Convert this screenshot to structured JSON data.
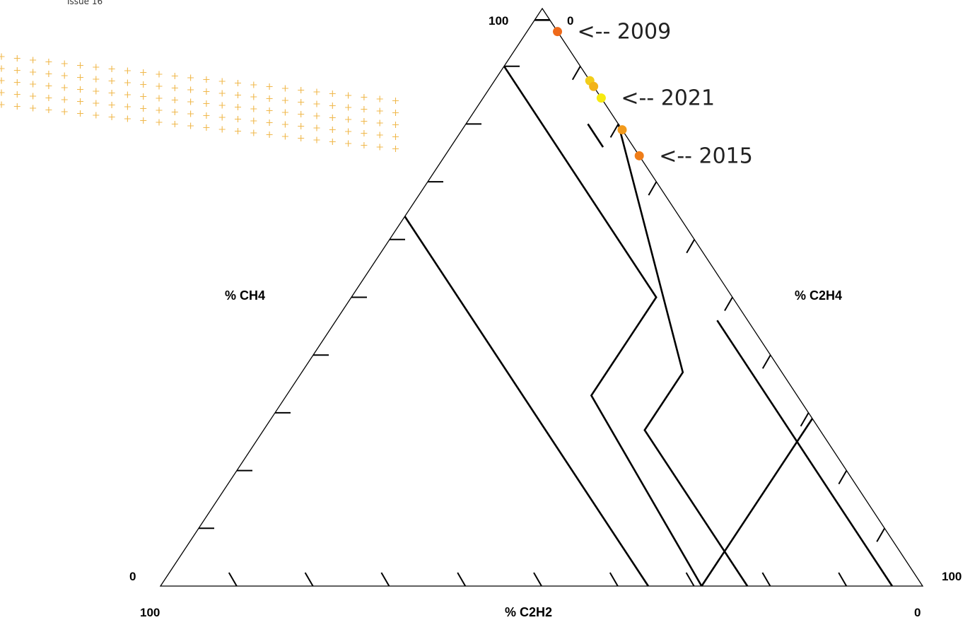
{
  "header": {
    "issue": "Issue 16"
  },
  "decoration": {
    "cross_color": "#f0b84c"
  },
  "chart_data": {
    "type": "scatter",
    "subtype": "ternary (Duval triangle)",
    "axes": {
      "ch4": {
        "label": "% CH4",
        "min": 0,
        "max": 100,
        "corner_min_label": "0",
        "corner_max_label": "100"
      },
      "c2h4": {
        "label": "% C2H4",
        "min": 0,
        "max": 100,
        "corner_min_label": "0",
        "corner_max_label": "100"
      },
      "c2h2": {
        "label": "% C2H2",
        "min": 0,
        "max": 100,
        "corner_min_label": "0",
        "corner_max_label": "100"
      }
    },
    "ticks": [
      10,
      20,
      30,
      40,
      50,
      60,
      70,
      80,
      90
    ],
    "zone_boundaries": [
      [
        {
          "ch4": 98,
          "c2h4": 2,
          "c2h2": 0
        },
        {
          "ch4": 98,
          "c2h4": 0,
          "c2h2": 2
        }
      ],
      [
        {
          "ch4": 80,
          "c2h4": 20,
          "c2h2": 0
        },
        {
          "ch4": 37,
          "c2h4": 50,
          "c2h2": 13
        },
        {
          "ch4": 27,
          "c2h4": 50,
          "c2h2": 23
        },
        {
          "ch4": 0,
          "c2h4": 77,
          "c2h2": 23
        }
      ],
      [
        {
          "ch4": 90,
          "c2h4": 0,
          "c2h2": 10
        },
        {
          "ch4": 50,
          "c2h4": 40,
          "c2h2": 10
        },
        {
          "ch4": 33,
          "c2h4": 40,
          "c2h2": 27
        },
        {
          "ch4": 0,
          "c2h4": 71,
          "c2h2": 29
        }
      ],
      [
        {
          "ch4": 64,
          "c2h4": 0,
          "c2h2": 36
        },
        {
          "ch4": 0,
          "c2h4": 64,
          "c2h2": 36
        }
      ],
      [
        {
          "ch4": 46,
          "c2h4": 50,
          "c2h2": 4
        },
        {
          "ch4": 0,
          "c2h4": 96,
          "c2h2": 4
        }
      ],
      [
        {
          "ch4": 80,
          "c2h4": 16,
          "c2h2": 4
        },
        {
          "ch4": 76,
          "c2h4": 20,
          "c2h2": 4
        }
      ],
      [
        {
          "ch4": 29,
          "c2h4": 71,
          "c2h2": 0
        },
        {
          "ch4": 0,
          "c2h4": 71,
          "c2h2": 29
        }
      ]
    ],
    "points": [
      {
        "ch4": 96,
        "c2h4": 4,
        "c2h2": 0,
        "color": "#ef6a1a"
      },
      {
        "ch4": 87.5,
        "c2h4": 12.5,
        "c2h2": 0,
        "color": "#f2cd1a"
      },
      {
        "ch4": 86.5,
        "c2h4": 13.5,
        "c2h2": 0,
        "color": "#f2b318"
      },
      {
        "ch4": 84.5,
        "c2h4": 15.5,
        "c2h2": 0,
        "color": "#f6ea10"
      },
      {
        "ch4": 79,
        "c2h4": 21,
        "c2h2": 0,
        "color": "#f29a1c"
      },
      {
        "ch4": 74.5,
        "c2h4": 25.5,
        "c2h2": 0,
        "color": "#ef7d18"
      }
    ],
    "annotations": [
      {
        "text": "<-- 2009",
        "point": 0
      },
      {
        "text": "<-- 2021",
        "point": 3
      },
      {
        "text": "<-- 2015",
        "point": 5
      }
    ]
  }
}
